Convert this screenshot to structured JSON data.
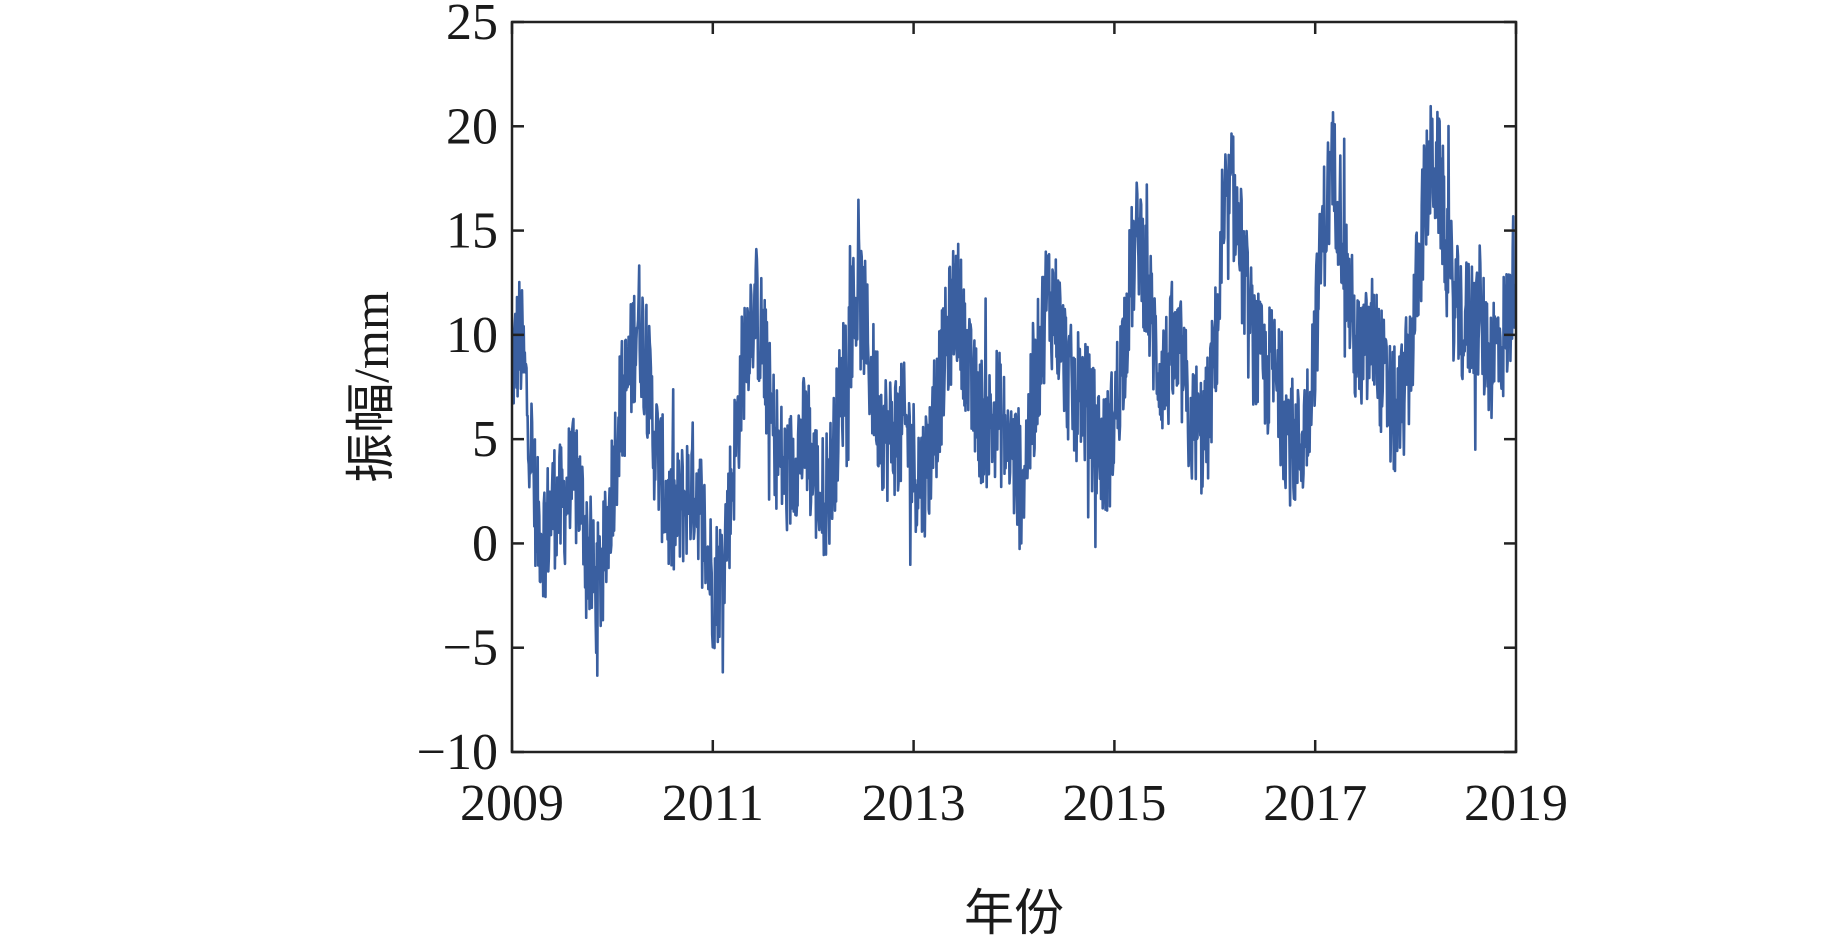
{
  "chart_data": {
    "type": "line",
    "title": "",
    "xlabel": "年份",
    "ylabel": "振幅/mm",
    "xlim": [
      2009,
      2019
    ],
    "ylim": [
      -10,
      25
    ],
    "x_ticks": [
      2009,
      2011,
      2013,
      2015,
      2017,
      2019
    ],
    "x_tick_labels": [
      "2009",
      "2011",
      "2013",
      "2015",
      "2017",
      "2019"
    ],
    "y_ticks": [
      -10,
      -5,
      0,
      5,
      10,
      15,
      20,
      25
    ],
    "y_tick_labels": [
      "−10",
      "−5",
      "0",
      "5",
      "10",
      "15",
      "20",
      "25"
    ],
    "grid": false,
    "series": [
      {
        "color": "#3a5fa0",
        "x": [
          2009.0,
          2009.08,
          2009.17,
          2009.25,
          2009.33,
          2009.42,
          2009.5,
          2009.58,
          2009.67,
          2009.75,
          2009.83,
          2009.92,
          2010.0,
          2010.08,
          2010.17,
          2010.25,
          2010.33,
          2010.42,
          2010.5,
          2010.58,
          2010.67,
          2010.75,
          2010.83,
          2010.92,
          2011.0,
          2011.08,
          2011.17,
          2011.25,
          2011.33,
          2011.42,
          2011.5,
          2011.58,
          2011.67,
          2011.75,
          2011.83,
          2011.92,
          2012.0,
          2012.08,
          2012.17,
          2012.25,
          2012.33,
          2012.42,
          2012.5,
          2012.58,
          2012.67,
          2012.75,
          2012.83,
          2012.92,
          2013.0,
          2013.08,
          2013.17,
          2013.25,
          2013.33,
          2013.42,
          2013.5,
          2013.58,
          2013.67,
          2013.75,
          2013.83,
          2013.92,
          2014.0,
          2014.08,
          2014.17,
          2014.25,
          2014.33,
          2014.42,
          2014.5,
          2014.58,
          2014.67,
          2014.75,
          2014.83,
          2014.92,
          2015.0,
          2015.08,
          2015.17,
          2015.25,
          2015.33,
          2015.42,
          2015.5,
          2015.58,
          2015.67,
          2015.75,
          2015.83,
          2015.92,
          2016.0,
          2016.08,
          2016.17,
          2016.25,
          2016.33,
          2016.42,
          2016.5,
          2016.58,
          2016.67,
          2016.75,
          2016.83,
          2016.92,
          2017.0,
          2017.08,
          2017.17,
          2017.25,
          2017.33,
          2017.42,
          2017.5,
          2017.58,
          2017.67,
          2017.75,
          2017.83,
          2017.92,
          2018.0,
          2018.08,
          2018.17,
          2018.25,
          2018.33,
          2018.42,
          2018.5,
          2018.58,
          2018.67,
          2018.75,
          2018.83,
          2018.92,
          2019.0
        ],
        "y": [
          8.5,
          10.0,
          6.0,
          1.0,
          0.5,
          2.0,
          1.5,
          3.0,
          2.5,
          0.0,
          -2.5,
          -1.0,
          3.0,
          6.5,
          8.0,
          11.0,
          9.0,
          5.0,
          3.0,
          1.0,
          1.5,
          2.5,
          3.0,
          0.5,
          -2.0,
          -1.5,
          2.0,
          6.0,
          10.0,
          11.5,
          9.5,
          6.0,
          4.0,
          3.0,
          4.5,
          5.0,
          3.5,
          2.0,
          3.0,
          6.0,
          9.0,
          12.0,
          11.0,
          8.0,
          6.0,
          5.0,
          5.5,
          5.5,
          4.0,
          3.0,
          4.5,
          7.0,
          9.5,
          12.0,
          10.0,
          7.0,
          6.0,
          5.5,
          6.5,
          5.0,
          4.0,
          3.0,
          6.0,
          9.0,
          12.0,
          11.0,
          9.0,
          7.0,
          7.5,
          6.0,
          5.0,
          4.0,
          6.0,
          9.0,
          13.0,
          15.0,
          12.0,
          9.0,
          8.0,
          9.0,
          8.5,
          6.0,
          5.0,
          5.5,
          9.0,
          14.0,
          17.0,
          14.5,
          11.0,
          9.0,
          8.0,
          8.5,
          6.5,
          5.0,
          4.5,
          6.0,
          10.0,
          15.0,
          18.0,
          16.0,
          12.0,
          9.0,
          9.0,
          10.0,
          8.0,
          6.5,
          6.0,
          8.0,
          11.5,
          16.0,
          18.5,
          17.0,
          13.0,
          11.0,
          10.5,
          11.0,
          10.0,
          9.0,
          9.5,
          10.5,
          14.0
        ],
        "noise_amplitude": 3.2
      }
    ]
  }
}
